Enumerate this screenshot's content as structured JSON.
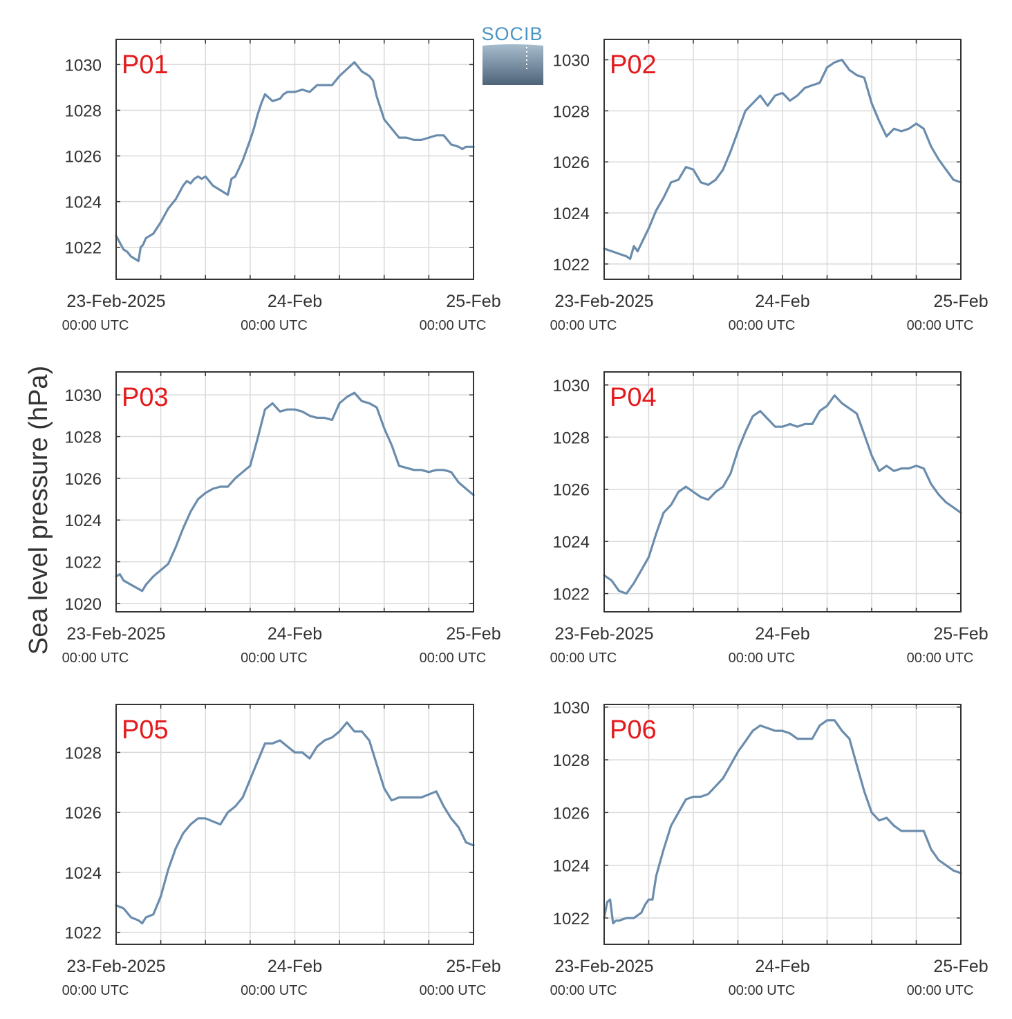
{
  "figure": {
    "ylabel": "Sea level pressure (hPa)",
    "logo_text": "SOCIB",
    "colors": {
      "line": "#6a8cad",
      "panel_label": "#e3191c",
      "grid": "#dadada",
      "axis": "#333333"
    }
  },
  "chart_data": [
    {
      "type": "line",
      "panel_label": "P01",
      "x_ticks": [
        {
          "label": "23-Feb-2025",
          "sub": "00:00 UTC",
          "h": 0
        },
        {
          "label": "24-Feb",
          "sub": "00:00 UTC",
          "h": 24
        },
        {
          "label": "25-Feb",
          "sub": "00:00 UTC",
          "h": 48
        }
      ],
      "xlim": [
        0,
        48
      ],
      "ylim": [
        1020.6,
        1031.1
      ],
      "yticks": [
        1022,
        1024,
        1026,
        1028,
        1030
      ],
      "series": [
        {
          "x": [
            0,
            0.5,
            1,
            1.5,
            2,
            2.5,
            3,
            3.3,
            3.6,
            4,
            5,
            6,
            7,
            8,
            9,
            9.5,
            10,
            10.5,
            11,
            11.5,
            12,
            12.5,
            13,
            14,
            15,
            15.5,
            16,
            17,
            18,
            18.5,
            19,
            19.5,
            20,
            21,
            22,
            22.5,
            23,
            24,
            25,
            26,
            27,
            28,
            29,
            30,
            31,
            32,
            33,
            34,
            34.5,
            35,
            36,
            37,
            38,
            39,
            40,
            41,
            42,
            43,
            44,
            45,
            46,
            46.5,
            47,
            47.5,
            48
          ],
          "y": [
            1022.5,
            1022.2,
            1021.9,
            1021.8,
            1021.6,
            1021.5,
            1021.4,
            1022.0,
            1022.1,
            1022.4,
            1022.6,
            1023.1,
            1023.7,
            1024.1,
            1024.7,
            1024.9,
            1024.8,
            1025.0,
            1025.1,
            1025.0,
            1025.1,
            1024.9,
            1024.7,
            1024.5,
            1024.3,
            1025.0,
            1025.1,
            1025.8,
            1026.7,
            1027.2,
            1027.8,
            1028.3,
            1028.7,
            1028.4,
            1028.5,
            1028.7,
            1028.8,
            1028.8,
            1028.9,
            1028.8,
            1029.1,
            1029.1,
            1029.1,
            1029.5,
            1029.8,
            1030.1,
            1029.7,
            1029.5,
            1029.3,
            1028.6,
            1027.6,
            1027.2,
            1026.8,
            1026.8,
            1026.7,
            1026.7,
            1026.8,
            1026.9,
            1026.9,
            1026.5,
            1026.4,
            1026.3,
            1026.4,
            1026.4,
            1026.4
          ]
        }
      ]
    },
    {
      "type": "line",
      "panel_label": "P02",
      "x_ticks": [
        {
          "label": "23-Feb-2025",
          "sub": "00:00 UTC",
          "h": 0
        },
        {
          "label": "24-Feb",
          "sub": "00:00 UTC",
          "h": 24
        },
        {
          "label": "25-Feb",
          "sub": "00:00 UTC",
          "h": 48
        }
      ],
      "xlim": [
        0,
        48
      ],
      "ylim": [
        1021.4,
        1030.8
      ],
      "yticks": [
        1022,
        1024,
        1026,
        1028,
        1030
      ],
      "series": [
        {
          "x": [
            0,
            1,
            2,
            3,
            3.5,
            4,
            4.5,
            5,
            6,
            7,
            8,
            9,
            10,
            11,
            12,
            13,
            14,
            15,
            16,
            17,
            18,
            19,
            20,
            21,
            22,
            23,
            24,
            25,
            26,
            27,
            28,
            29,
            30,
            31,
            32,
            33,
            34,
            35,
            36,
            37,
            38,
            39,
            40,
            41,
            42,
            43,
            44,
            45,
            46,
            47,
            48
          ],
          "y": [
            1022.6,
            1022.5,
            1022.4,
            1022.3,
            1022.2,
            1022.7,
            1022.5,
            1022.8,
            1023.4,
            1024.1,
            1024.6,
            1025.2,
            1025.3,
            1025.8,
            1025.7,
            1025.2,
            1025.1,
            1025.3,
            1025.7,
            1026.4,
            1027.2,
            1028.0,
            1028.3,
            1028.6,
            1028.2,
            1028.6,
            1028.7,
            1028.4,
            1028.6,
            1028.9,
            1029.0,
            1029.1,
            1029.7,
            1029.9,
            1030.0,
            1029.6,
            1029.4,
            1029.3,
            1028.3,
            1027.6,
            1027.0,
            1027.3,
            1027.2,
            1027.3,
            1027.5,
            1027.3,
            1026.6,
            1026.1,
            1025.7,
            1025.3,
            1025.2
          ]
        }
      ]
    },
    {
      "type": "line",
      "panel_label": "P03",
      "x_ticks": [
        {
          "label": "23-Feb-2025",
          "sub": "00:00 UTC",
          "h": 0
        },
        {
          "label": "24-Feb",
          "sub": "00:00 UTC",
          "h": 24
        },
        {
          "label": "25-Feb",
          "sub": "00:00 UTC",
          "h": 48
        }
      ],
      "xlim": [
        0,
        48
      ],
      "ylim": [
        1019.6,
        1031.1
      ],
      "yticks": [
        1020,
        1022,
        1024,
        1026,
        1028,
        1030
      ],
      "series": [
        {
          "x": [
            0,
            0.5,
            1,
            2,
            3,
            3.5,
            4,
            5,
            6,
            7,
            8,
            9,
            10,
            11,
            12,
            13,
            14,
            15,
            16,
            17,
            18,
            19,
            20,
            21,
            22,
            23,
            24,
            25,
            26,
            27,
            28,
            29,
            30,
            31,
            32,
            33,
            34,
            35,
            36,
            37,
            38,
            39,
            40,
            41,
            42,
            43,
            44,
            45,
            46,
            47,
            48
          ],
          "y": [
            1021.3,
            1021.4,
            1021.1,
            1020.9,
            1020.7,
            1020.6,
            1020.9,
            1021.3,
            1021.6,
            1021.9,
            1022.7,
            1023.6,
            1024.4,
            1025.0,
            1025.3,
            1025.5,
            1025.6,
            1025.6,
            1026.0,
            1026.3,
            1026.6,
            1027.9,
            1029.3,
            1029.6,
            1029.2,
            1029.3,
            1029.3,
            1029.2,
            1029.0,
            1028.9,
            1028.9,
            1028.8,
            1029.6,
            1029.9,
            1030.1,
            1029.7,
            1029.6,
            1029.4,
            1028.4,
            1027.6,
            1026.6,
            1026.5,
            1026.4,
            1026.4,
            1026.3,
            1026.4,
            1026.4,
            1026.3,
            1025.8,
            1025.5,
            1025.2
          ]
        }
      ]
    },
    {
      "type": "line",
      "panel_label": "P04",
      "x_ticks": [
        {
          "label": "23-Feb-2025",
          "sub": "00:00 UTC",
          "h": 0
        },
        {
          "label": "24-Feb",
          "sub": "00:00 UTC",
          "h": 24
        },
        {
          "label": "25-Feb",
          "sub": "00:00 UTC",
          "h": 48
        }
      ],
      "xlim": [
        0,
        48
      ],
      "ylim": [
        1021.3,
        1030.5
      ],
      "yticks": [
        1022,
        1024,
        1026,
        1028,
        1030
      ],
      "series": [
        {
          "x": [
            0,
            1,
            2,
            3,
            4,
            5,
            6,
            7,
            8,
            9,
            10,
            11,
            12,
            13,
            14,
            15,
            16,
            17,
            18,
            19,
            20,
            21,
            22,
            23,
            24,
            25,
            26,
            27,
            28,
            29,
            30,
            31,
            32,
            33,
            34,
            35,
            36,
            37,
            38,
            39,
            40,
            41,
            42,
            43,
            44,
            45,
            46,
            47,
            48
          ],
          "y": [
            1022.7,
            1022.5,
            1022.1,
            1022.0,
            1022.4,
            1022.9,
            1023.4,
            1024.3,
            1025.1,
            1025.4,
            1025.9,
            1026.1,
            1025.9,
            1025.7,
            1025.6,
            1025.9,
            1026.1,
            1026.6,
            1027.5,
            1028.2,
            1028.8,
            1029.0,
            1028.7,
            1028.4,
            1028.4,
            1028.5,
            1028.4,
            1028.5,
            1028.5,
            1029.0,
            1029.2,
            1029.6,
            1029.3,
            1029.1,
            1028.9,
            1028.1,
            1027.3,
            1026.7,
            1026.9,
            1026.7,
            1026.8,
            1026.8,
            1026.9,
            1026.8,
            1026.2,
            1025.8,
            1025.5,
            1025.3,
            1025.1
          ]
        }
      ]
    },
    {
      "type": "line",
      "panel_label": "P05",
      "x_ticks": [
        {
          "label": "23-Feb-2025",
          "sub": "00:00 UTC",
          "h": 0
        },
        {
          "label": "24-Feb",
          "sub": "00:00 UTC",
          "h": 24
        },
        {
          "label": "25-Feb",
          "sub": "00:00 UTC",
          "h": 48
        }
      ],
      "xlim": [
        0,
        48
      ],
      "ylim": [
        1021.6,
        1029.6
      ],
      "yticks": [
        1022,
        1024,
        1026,
        1028
      ],
      "series": [
        {
          "x": [
            0,
            1,
            2,
            3,
            3.5,
            4,
            5,
            6,
            7,
            8,
            9,
            10,
            11,
            12,
            13,
            14,
            15,
            16,
            17,
            18,
            19,
            20,
            21,
            22,
            23,
            24,
            25,
            26,
            27,
            28,
            29,
            30,
            31,
            32,
            33,
            34,
            35,
            36,
            37,
            38,
            39,
            40,
            41,
            42,
            43,
            44,
            45,
            46,
            47,
            48
          ],
          "y": [
            1022.9,
            1022.8,
            1022.5,
            1022.4,
            1022.3,
            1022.5,
            1022.6,
            1023.2,
            1024.1,
            1024.8,
            1025.3,
            1025.6,
            1025.8,
            1025.8,
            1025.7,
            1025.6,
            1026.0,
            1026.2,
            1026.5,
            1027.1,
            1027.7,
            1028.3,
            1028.3,
            1028.4,
            1028.2,
            1028.0,
            1028.0,
            1027.8,
            1028.2,
            1028.4,
            1028.5,
            1028.7,
            1029.0,
            1028.7,
            1028.7,
            1028.4,
            1027.6,
            1026.8,
            1026.4,
            1026.5,
            1026.5,
            1026.5,
            1026.5,
            1026.6,
            1026.7,
            1026.2,
            1025.8,
            1025.5,
            1025.0,
            1024.9
          ]
        }
      ]
    },
    {
      "type": "line",
      "panel_label": "P06",
      "x_ticks": [
        {
          "label": "23-Feb-2025",
          "sub": "00:00 UTC",
          "h": 0
        },
        {
          "label": "24-Feb",
          "sub": "00:00 UTC",
          "h": 24
        },
        {
          "label": "25-Feb",
          "sub": "00:00 UTC",
          "h": 48
        }
      ],
      "xlim": [
        0,
        48
      ],
      "ylim": [
        1021.0,
        1030.1
      ],
      "yticks": [
        1022,
        1024,
        1026,
        1028,
        1030
      ],
      "series": [
        {
          "x": [
            0,
            0.4,
            0.8,
            1.2,
            1.6,
            2,
            3,
            4,
            5,
            5.5,
            6,
            6.5,
            7,
            8,
            9,
            10,
            11,
            12,
            13,
            14,
            15,
            16,
            17,
            18,
            19,
            20,
            21,
            22,
            23,
            24,
            25,
            26,
            27,
            28,
            29,
            30,
            31,
            32,
            33,
            34,
            35,
            36,
            37,
            38,
            39,
            40,
            41,
            42,
            43,
            44,
            45,
            46,
            47,
            48
          ],
          "y": [
            1022.0,
            1022.6,
            1022.7,
            1021.8,
            1021.9,
            1021.9,
            1022.0,
            1022.0,
            1022.2,
            1022.5,
            1022.7,
            1022.7,
            1023.6,
            1024.6,
            1025.5,
            1026.0,
            1026.5,
            1026.6,
            1026.6,
            1026.7,
            1027.0,
            1027.3,
            1027.8,
            1028.3,
            1028.7,
            1029.1,
            1029.3,
            1029.2,
            1029.1,
            1029.1,
            1029.0,
            1028.8,
            1028.8,
            1028.8,
            1029.3,
            1029.5,
            1029.5,
            1029.1,
            1028.8,
            1027.8,
            1026.8,
            1026.0,
            1025.7,
            1025.8,
            1025.5,
            1025.3,
            1025.3,
            1025.3,
            1025.3,
            1024.6,
            1024.2,
            1024.0,
            1023.8,
            1023.7
          ]
        }
      ]
    }
  ]
}
